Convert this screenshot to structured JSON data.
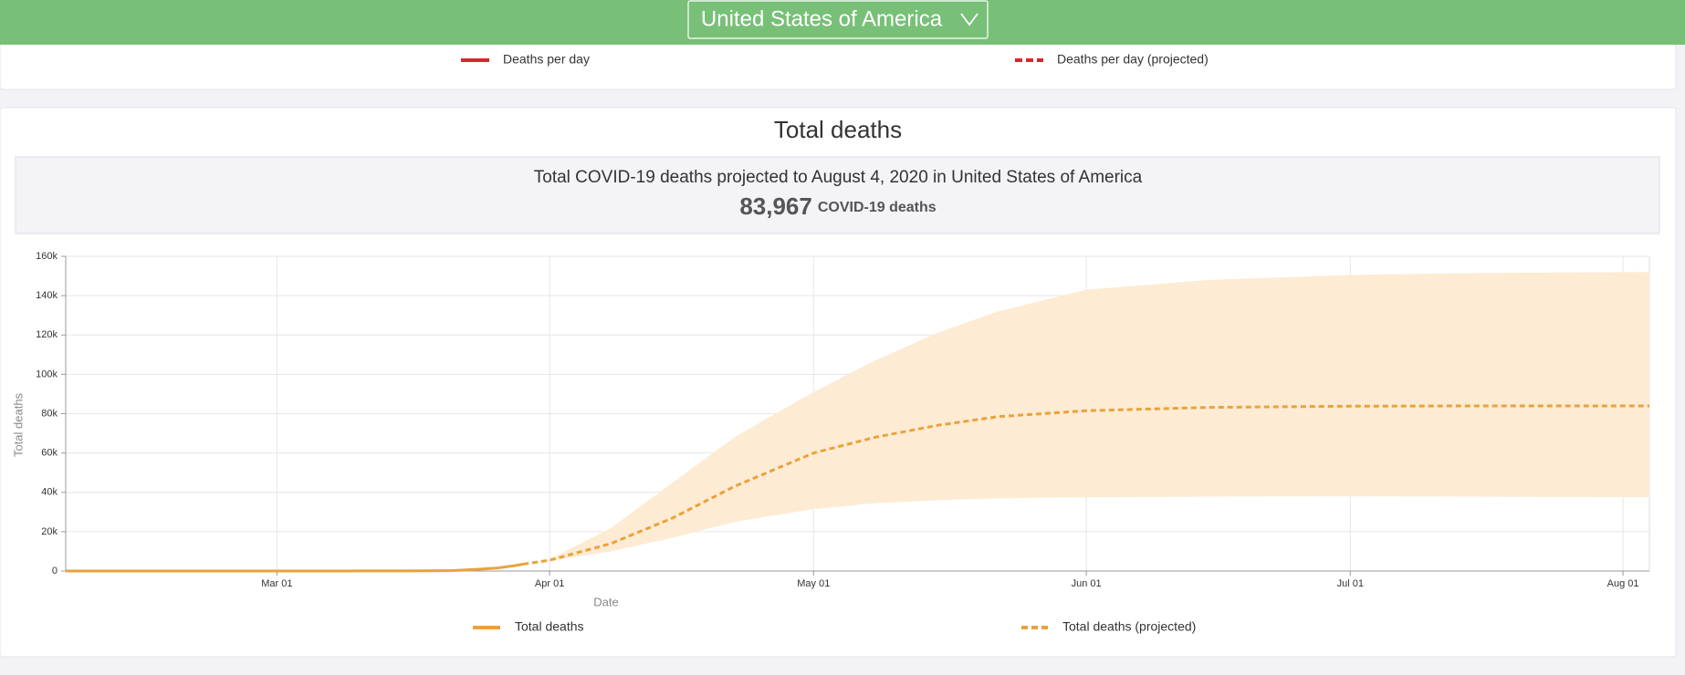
{
  "header": {
    "country": "United States of America"
  },
  "daily_legend": [
    {
      "name": "Deaths per day",
      "color": "#d7262e",
      "dashed": false
    },
    {
      "name": "Deaths per day (projected)",
      "color": "#d7262e",
      "dashed": true
    }
  ],
  "summary": {
    "headline": "Total COVID-19 deaths projected to August 4, 2020 in United States of America",
    "total": "83,967",
    "unit": "COVID-19 deaths"
  },
  "chart_data": {
    "type": "line",
    "title": "Total deaths",
    "x_label": "Date",
    "y_label": "Total deaths",
    "xlim": [
      "02-06",
      "08-04"
    ],
    "xticks": [
      {
        "value": "03-01",
        "label": "Mar 01"
      },
      {
        "value": "04-01",
        "label": "Apr 01"
      },
      {
        "value": "05-01",
        "label": "May 01"
      },
      {
        "value": "06-01",
        "label": "Jun 01"
      },
      {
        "value": "07-01",
        "label": "Jul 01"
      },
      {
        "value": "08-01",
        "label": "Aug 01"
      }
    ],
    "ylim": [
      0,
      160000
    ],
    "yticks": [
      0,
      {
        "value": 20000,
        "label": "20k"
      },
      {
        "value": 40000,
        "label": "40k"
      },
      {
        "value": 60000,
        "label": "60k"
      },
      {
        "value": 80000,
        "label": "80k"
      },
      {
        "value": 100000,
        "label": "100k"
      },
      {
        "value": 120000,
        "label": "120k"
      },
      {
        "value": 140000,
        "label": "140k"
      },
      {
        "value": 160000,
        "label": "160k"
      }
    ],
    "grid": true,
    "band_color": "#fdebd3",
    "series": [
      {
        "name": "Total deaths",
        "color": "#e9a23b",
        "dashed": false,
        "x": [
          "02-06",
          "02-15",
          "02-25",
          "03-05",
          "03-10",
          "03-15",
          "03-18",
          "03-21",
          "03-24",
          "03-26",
          "03-28",
          "03-29"
        ],
        "values": [
          0,
          0,
          0,
          10,
          30,
          60,
          110,
          250,
          900,
          1500,
          2700,
          3500
        ]
      },
      {
        "name": "Total deaths (projected)",
        "color": "#e9a23b",
        "dashed": true,
        "x": [
          "03-29",
          "04-01",
          "04-08",
          "04-15",
          "04-22",
          "05-01",
          "05-08",
          "05-15",
          "05-22",
          "06-01",
          "06-15",
          "07-01",
          "07-15",
          "08-04"
        ],
        "values": [
          3500,
          5500,
          14000,
          27000,
          43000,
          60000,
          68000,
          74000,
          78500,
          81500,
          83200,
          83800,
          83950,
          83967
        ],
        "upper": [
          3500,
          6000,
          22000,
          45000,
          68000,
          91000,
          107000,
          121000,
          132000,
          143000,
          148000,
          150500,
          151500,
          152000
        ],
        "lower": [
          3500,
          5000,
          10000,
          17000,
          25000,
          31500,
          34500,
          36000,
          37000,
          37500,
          37800,
          38000,
          37800,
          37500
        ]
      }
    ]
  }
}
